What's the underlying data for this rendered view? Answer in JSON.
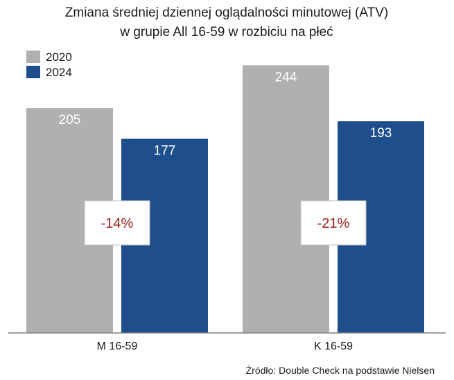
{
  "chart_data": {
    "type": "bar",
    "title_lines": [
      "Zmiana średniej dziennej oglądalności minutowej (ATV)",
      "w grupie All 16-59 w rozbiciu na płeć"
    ],
    "categories": [
      "M 16-59",
      "K 16-59"
    ],
    "series": [
      {
        "name": "2020",
        "values": [
          205,
          244
        ],
        "color": "#b0b0b0"
      },
      {
        "name": "2024",
        "values": [
          177,
          193
        ],
        "color": "#1f4e8c"
      }
    ],
    "changes": [
      "-14%",
      "-21%"
    ],
    "change_color": "#a11a1a",
    "legend_position": "top-left",
    "ylim": [
      0,
      260
    ],
    "grid": false,
    "xlabel": "",
    "ylabel": ""
  },
  "source": "Źródło: Double Check na podstawie Nielsen"
}
